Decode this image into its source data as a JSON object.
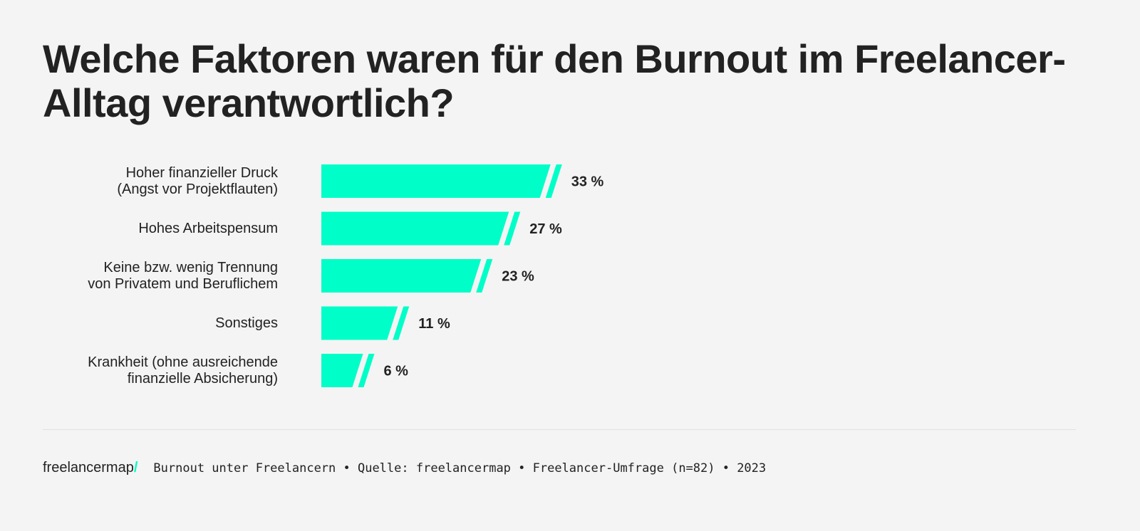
{
  "chart_data": {
    "type": "bar",
    "orientation": "horizontal",
    "title": "Welche Faktoren waren für den Burnout im Freelancer-Alltag verantwortlich?",
    "categories": [
      [
        "Hoher finanzieller Druck",
        "(Angst vor Projektflauten)"
      ],
      [
        "Hohes Arbeitspensum"
      ],
      [
        "Keine bzw. wenig Trennung",
        "von Privatem und Beruflichem"
      ],
      [
        "Sonstiges"
      ],
      [
        "Krankheit (ohne ausreichende",
        "finanzielle Absicherung)"
      ]
    ],
    "values": [
      33,
      27,
      23,
      11,
      6
    ],
    "value_labels": [
      "33 %",
      "27 %",
      "23 %",
      "11 %",
      "6 %"
    ],
    "unit": "%",
    "grid": false,
    "bar_color": "#00ffc8"
  },
  "footer": {
    "logo": "freelancermap",
    "logo_slash": "/",
    "source": "Burnout unter Freelancern • Quelle: freelancermap • Freelancer-Umfrage (n=82) • 2023"
  }
}
